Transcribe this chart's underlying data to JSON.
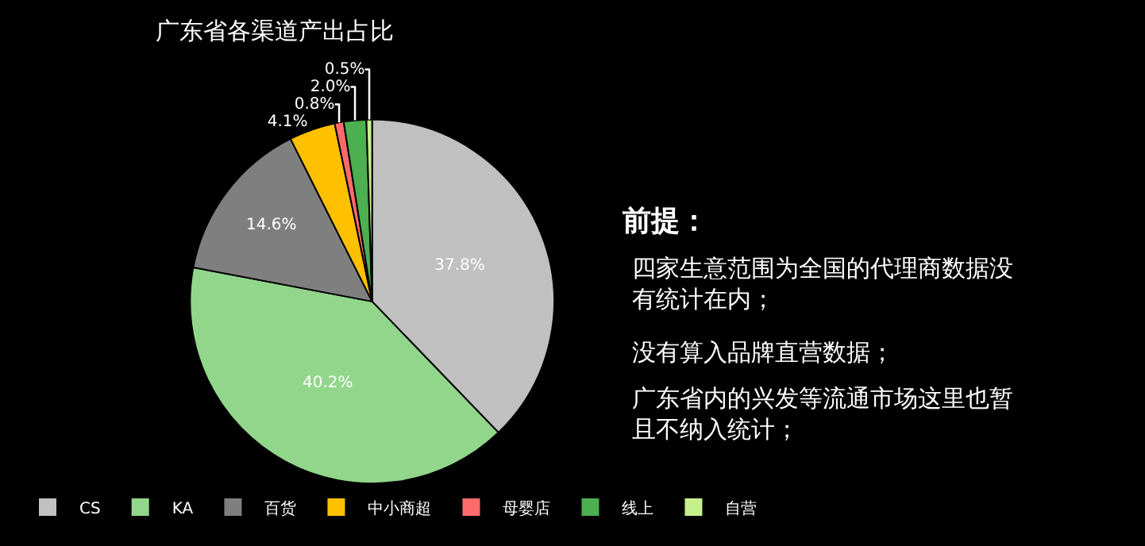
{
  "chart_data": {
    "type": "pie",
    "title": "广东省各渠道产出占比",
    "categories": [
      "CS",
      "KA",
      "百货",
      "中小商超",
      "母婴店",
      "线上",
      "自营"
    ],
    "values": [
      37.8,
      40.2,
      14.6,
      4.1,
      0.8,
      2.0,
      0.5
    ],
    "value_labels": [
      "37.8%",
      "40.2%",
      "14.6%",
      "4.1%",
      "0.8%",
      "2.0%",
      "0.5%"
    ],
    "colors": [
      "#c0c0c0",
      "#92d68c",
      "#7f7f7f",
      "#ffc000",
      "#ff6b6b",
      "#4caf50",
      "#c6f08c"
    ],
    "legend": "bottom",
    "annotations": [
      "前提：",
      "四家生意范围为全国的代理商数据没有统计在内；",
      "没有算入品牌直营数据；",
      "广东省内的兴发等流通市场这里也暂且不纳入统计；"
    ]
  }
}
